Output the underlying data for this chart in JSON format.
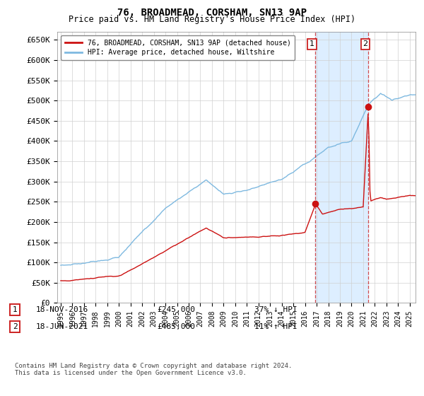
{
  "title": "76, BROADMEAD, CORSHAM, SN13 9AP",
  "subtitle": "Price paid vs. HM Land Registry's House Price Index (HPI)",
  "hpi_label": "HPI: Average price, detached house, Wiltshire",
  "price_label": "76, BROADMEAD, CORSHAM, SN13 9AP (detached house)",
  "transaction1_date": "18-NOV-2016",
  "transaction1_price": 245000,
  "transaction1_note": "37% ↓ HPI",
  "transaction2_date": "18-JUN-2021",
  "transaction2_price": 485000,
  "transaction2_note": "11% ↑ HPI",
  "ylim": [
    0,
    670000
  ],
  "yticks": [
    0,
    50000,
    100000,
    150000,
    200000,
    250000,
    300000,
    350000,
    400000,
    450000,
    500000,
    550000,
    600000,
    650000
  ],
  "hpi_color": "#7eb9e0",
  "price_color": "#cc1111",
  "vline_color": "#cc2222",
  "bg_color": "#ffffff",
  "grid_color": "#d0d0d0",
  "shade_color": "#ddeeff",
  "footnote": "Contains HM Land Registry data © Crown copyright and database right 2024.\nThis data is licensed under the Open Government Licence v3.0.",
  "t1_year_float": 2016.875,
  "t2_year_float": 2021.458
}
